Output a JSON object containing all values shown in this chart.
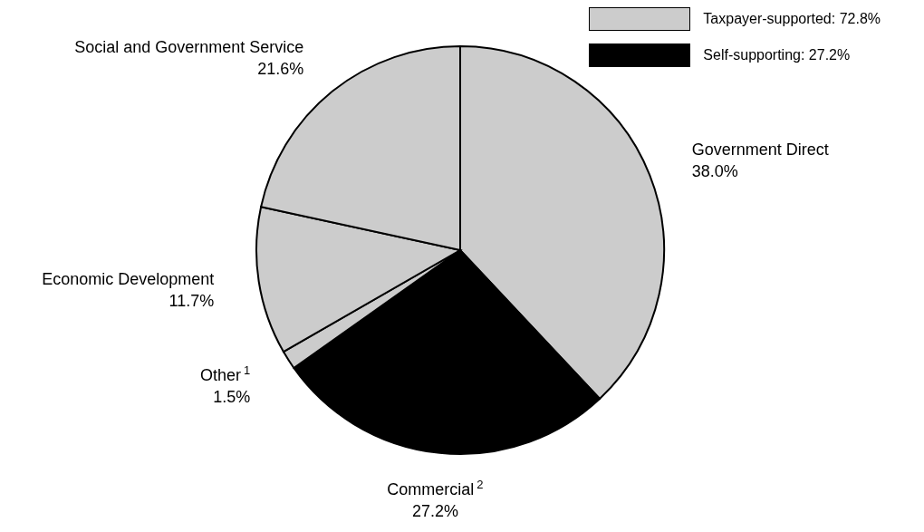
{
  "chart_data": {
    "type": "pie",
    "categories": [
      "Government Direct",
      "Commercial$^{2}$",
      "Other$^{1}$",
      "Economic Development",
      "Social and Government Service"
    ],
    "values": [
      38.0,
      27.2,
      1.5,
      11.7,
      21.6
    ],
    "value_labels": [
      "38.0%",
      "27.2%",
      "1.5%",
      "11.7%",
      "21.6%"
    ],
    "colors": [
      "#cccccc",
      "#000000",
      "#cccccc",
      "#cccccc",
      "#cccccc"
    ],
    "annotations": [
      "Taxpayer-supported: 72.8%",
      "Self-supporting: 27.2%"
    ]
  }
}
